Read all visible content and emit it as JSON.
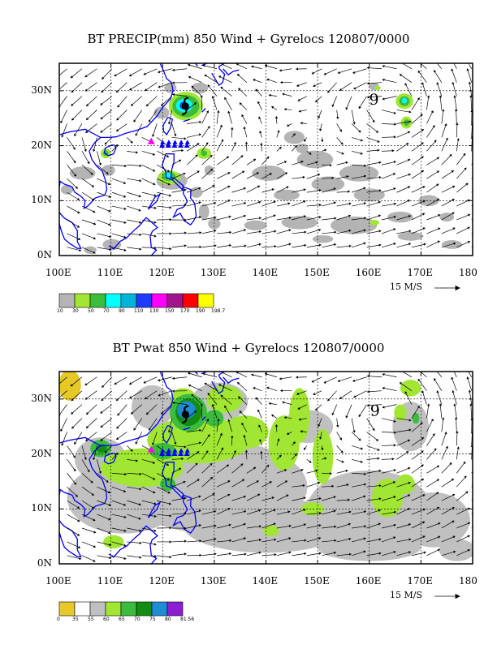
{
  "chart_data": [
    {
      "type": "heatmap",
      "title": "BT PRECIP(mm) 850 Wind + Gyrelocs 120807/0000",
      "x_tick_labels": [
        "100E",
        "110E",
        "120E",
        "130E",
        "140E",
        "150E",
        "160E",
        "170E",
        "180"
      ],
      "y_tick_labels": [
        "0N",
        "10N",
        "20N",
        "30N"
      ],
      "xlim": [
        100,
        180
      ],
      "ylim": [
        0,
        35
      ],
      "grid": true,
      "reference_vector_label": "15 M/S",
      "colorbar": {
        "labels": [
          "10",
          "30",
          "50",
          "70",
          "90",
          "110",
          "130",
          "150",
          "170",
          "190",
          "198.7"
        ],
        "colors": [
          "#b4b4b4",
          "#a0e632",
          "#3cbc3c",
          "#00ffff",
          "#00b4dc",
          "#1e3cff",
          "#ff00ff",
          "#a0148c",
          "#ff0000",
          "#ffff00"
        ]
      },
      "gyre_markers": [
        {
          "label": "9",
          "lon": 160.9,
          "lat": 28.5
        }
      ]
    },
    {
      "type": "heatmap",
      "title": "BT Pwat 850 Wind + Gyrelocs 120807/0000",
      "x_tick_labels": [
        "100E",
        "110E",
        "120E",
        "130E",
        "140E",
        "150E",
        "160E",
        "170E",
        "180"
      ],
      "y_tick_labels": [
        "0N",
        "10N",
        "20N",
        "30N"
      ],
      "xlim": [
        100,
        180
      ],
      "ylim": [
        0,
        35
      ],
      "grid": true,
      "reference_vector_label": "15 M/S",
      "colorbar": {
        "labels": [
          "0",
          "35",
          "55",
          "60",
          "65",
          "70",
          "75",
          "80",
          "81.56"
        ],
        "colors": [
          "#e6c828",
          "#ffffff",
          "#c0c0c0",
          "#a0e632",
          "#3cbc3c",
          "#148c14",
          "#1e8cd2",
          "#8c1ed2"
        ]
      },
      "gyre_markers": [
        {
          "label": "9",
          "lon": 161.1,
          "lat": 28.0
        }
      ]
    }
  ]
}
